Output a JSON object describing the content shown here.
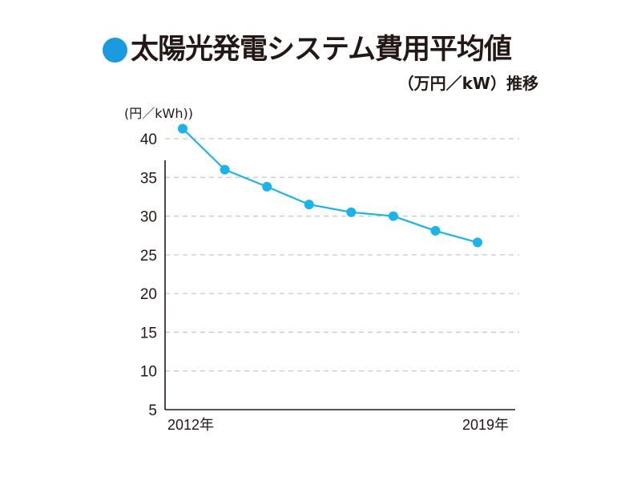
{
  "title": "太陽光発電システム費用平均値",
  "subtitle": "（万円／kW）推移",
  "colors": {
    "bullet": "#1a9be0",
    "series": "#1ab4ea",
    "axis": "#231815",
    "grid": "#c8c8c8"
  },
  "chart_data": {
    "type": "line",
    "title": "太陽光発電システム費用平均値（万円／kW）推移",
    "ylabel": "(円／kWh))",
    "xlabel": "",
    "x": [
      2012,
      2013,
      2014,
      2015,
      2016,
      2017,
      2018,
      2019
    ],
    "x_tick_labels": [
      {
        "x": 2012,
        "label": "2012年"
      },
      {
        "x": 2019,
        "label": "2019年"
      }
    ],
    "series": [
      {
        "name": "費用平均値",
        "values": [
          41.3,
          36.0,
          33.8,
          31.5,
          30.5,
          30.0,
          28.1,
          26.6
        ]
      }
    ],
    "y_ticks": [
      5,
      10,
      15,
      20,
      25,
      30,
      35,
      40
    ],
    "ylim": [
      5,
      40
    ],
    "grid": true,
    "grid_style": "dashed",
    "legend": "none"
  }
}
